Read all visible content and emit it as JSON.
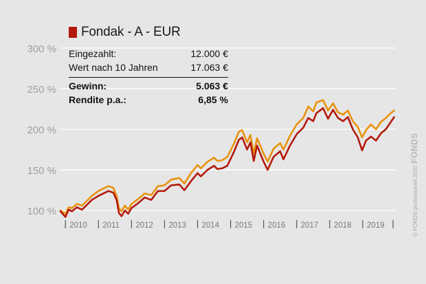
{
  "legend": {
    "title": "Fondak - A - EUR",
    "swatch_color": "#b31a0d"
  },
  "info": {
    "rows": [
      {
        "label": "Eingezahlt:",
        "value": "12.000 €"
      },
      {
        "label": "Wert nach 10 Jahren",
        "value": "17.063 €"
      }
    ],
    "bold_rows": [
      {
        "label": "Gewinn:",
        "value": "5.063 €"
      },
      {
        "label": "Rendite p.a.:",
        "value": "6,85 %"
      }
    ]
  },
  "credit": {
    "text": "© FONDS professionell 2020",
    "logo": "FONDS"
  },
  "colors": {
    "fund": "#b31a0d",
    "benchmark": "#e8920e",
    "grid": "#ffffff",
    "tick_label": "#a0a0a0",
    "background": "#e6e6e6"
  },
  "chart_data": {
    "type": "line",
    "ylim": [
      95,
      305
    ],
    "yticks": [
      100,
      150,
      200,
      250,
      300
    ],
    "ytick_labels": [
      "100 %",
      "150 %",
      "200 %",
      "250 %",
      "300 %"
    ],
    "xlim": [
      2009.85,
      2020.0
    ],
    "xticks": [
      2010,
      2011,
      2012,
      2013,
      2014,
      2015,
      2016,
      2017,
      2018,
      2019
    ],
    "xtick_labels": [
      "2010",
      "2011",
      "2012",
      "2013",
      "2014",
      "2015",
      "2016",
      "2017",
      "2018",
      "2019"
    ],
    "grid": true,
    "series": [
      {
        "name": "Fondak - A - EUR",
        "color": "#b31a0d",
        "x": [
          2009.85,
          2010.0,
          2010.1,
          2010.2,
          2010.35,
          2010.5,
          2010.65,
          2010.8,
          2011.0,
          2011.15,
          2011.3,
          2011.45,
          2011.55,
          2011.62,
          2011.7,
          2011.8,
          2011.9,
          2012.0,
          2012.2,
          2012.4,
          2012.6,
          2012.8,
          2013.0,
          2013.2,
          2013.45,
          2013.6,
          2013.8,
          2014.0,
          2014.1,
          2014.3,
          2014.5,
          2014.6,
          2014.75,
          2014.9,
          2015.1,
          2015.25,
          2015.35,
          2015.5,
          2015.6,
          2015.7,
          2015.8,
          2016.0,
          2016.12,
          2016.3,
          2016.5,
          2016.6,
          2016.8,
          2017.0,
          2017.2,
          2017.35,
          2017.5,
          2017.6,
          2017.8,
          2017.95,
          2018.1,
          2018.25,
          2018.4,
          2018.55,
          2018.7,
          2018.85,
          2018.98,
          2019.1,
          2019.25,
          2019.4,
          2019.55,
          2019.7,
          2019.85,
          2019.95
        ],
        "y": [
          99,
          92,
          101,
          99,
          104,
          101,
          107,
          113,
          118,
          121,
          124,
          122,
          113,
          97,
          93,
          100,
          96,
          103,
          109,
          116,
          113,
          124,
          124,
          131,
          132,
          125,
          136,
          146,
          142,
          150,
          155,
          151,
          152,
          155,
          172,
          187,
          190,
          175,
          184,
          161,
          180,
          160,
          150,
          166,
          173,
          163,
          180,
          194,
          202,
          214,
          210,
          220,
          226,
          213,
          224,
          214,
          210,
          215,
          200,
          190,
          174,
          186,
          191,
          186,
          195,
          200,
          209,
          215
        ]
      },
      {
        "name": "",
        "color": "#e8920e",
        "x": [
          2009.85,
          2010.0,
          2010.1,
          2010.2,
          2010.35,
          2010.5,
          2010.65,
          2010.8,
          2011.0,
          2011.15,
          2011.3,
          2011.45,
          2011.55,
          2011.62,
          2011.7,
          2011.8,
          2011.9,
          2012.0,
          2012.2,
          2012.4,
          2012.6,
          2012.8,
          2013.0,
          2013.2,
          2013.45,
          2013.6,
          2013.8,
          2014.0,
          2014.1,
          2014.3,
          2014.5,
          2014.6,
          2014.75,
          2014.9,
          2015.1,
          2015.25,
          2015.35,
          2015.5,
          2015.6,
          2015.7,
          2015.8,
          2016.0,
          2016.12,
          2016.3,
          2016.5,
          2016.6,
          2016.8,
          2017.0,
          2017.2,
          2017.35,
          2017.5,
          2017.6,
          2017.8,
          2017.95,
          2018.1,
          2018.25,
          2018.4,
          2018.55,
          2018.7,
          2018.85,
          2018.98,
          2019.1,
          2019.25,
          2019.4,
          2019.55,
          2019.7,
          2019.85,
          2019.95
        ],
        "y": [
          100,
          96,
          104,
          103,
          108,
          106,
          112,
          118,
          124,
          127,
          130,
          128,
          118,
          103,
          99,
          106,
          101,
          108,
          114,
          121,
          119,
          130,
          131,
          138,
          140,
          133,
          146,
          156,
          152,
          160,
          165,
          161,
          162,
          166,
          182,
          197,
          199,
          184,
          193,
          170,
          189,
          170,
          160,
          176,
          183,
          175,
          192,
          206,
          214,
          228,
          222,
          233,
          236,
          223,
          232,
          221,
          218,
          223,
          210,
          203,
          190,
          199,
          206,
          200,
          209,
          214,
          220,
          223
        ]
      }
    ]
  }
}
